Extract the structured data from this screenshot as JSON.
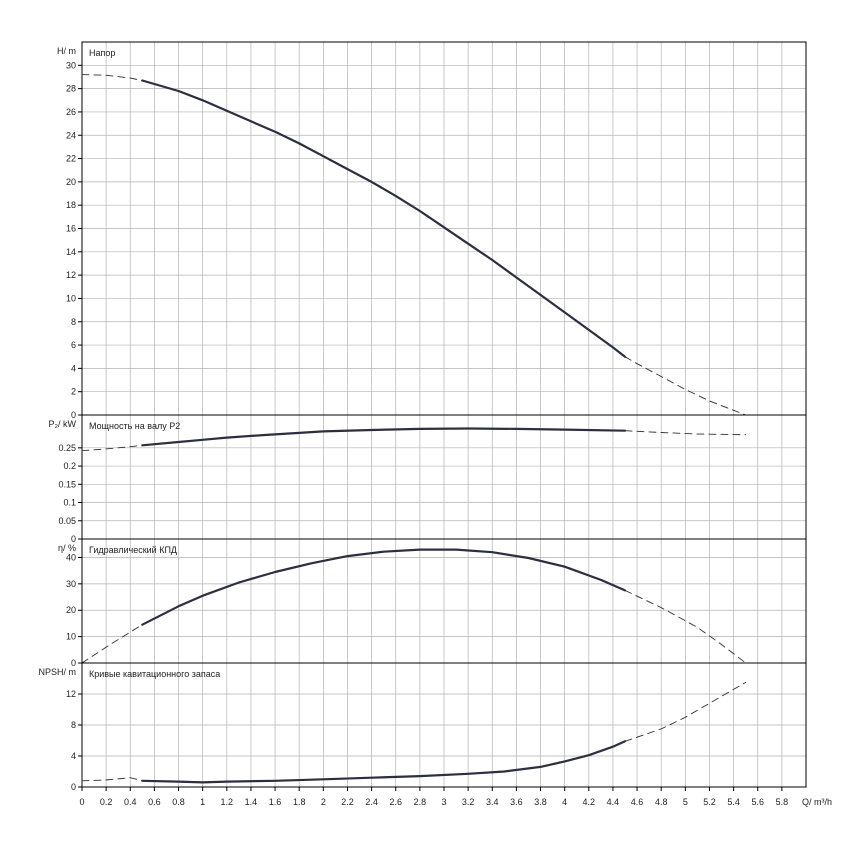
{
  "chart_data": {
    "type": "line",
    "x_axis": {
      "label": "Q/ m³/h",
      "xlim": [
        0,
        6
      ],
      "ticks": [
        "0",
        "0.2",
        "0.4",
        "0.6",
        "0.8",
        "1",
        "1.2",
        "1.4",
        "1.6",
        "1.8",
        "2",
        "2.2",
        "2.4",
        "2.6",
        "2.8",
        "3",
        "3.2",
        "3.4",
        "3.6",
        "3.8",
        "4",
        "4.2",
        "4.4",
        "4.6",
        "4.8",
        "5",
        "5.2",
        "5.4",
        "5.6",
        "5.8"
      ]
    },
    "grid": true,
    "panels": [
      {
        "id": "head",
        "title": "Напор",
        "ylabel": "H/ m",
        "ylim": [
          0,
          32
        ],
        "yticks": [
          "0",
          "2",
          "4",
          "6",
          "8",
          "10",
          "12",
          "14",
          "16",
          "18",
          "20",
          "22",
          "24",
          "26",
          "28",
          "30"
        ],
        "series": [
          {
            "style": "dashed",
            "x": [
              0,
              0.2,
              0.4,
              0.5
            ],
            "y": [
              29.2,
              29.15,
              28.9,
              28.7
            ]
          },
          {
            "style": "solid",
            "x": [
              0.5,
              0.6,
              0.8,
              1.0,
              1.2,
              1.4,
              1.6,
              1.8,
              2.0,
              2.2,
              2.4,
              2.6,
              2.8,
              3.0,
              3.2,
              3.4,
              3.6,
              3.8,
              4.0,
              4.2,
              4.4,
              4.5
            ],
            "y": [
              28.7,
              28.4,
              27.8,
              27.0,
              26.1,
              25.2,
              24.3,
              23.3,
              22.2,
              21.1,
              20.0,
              18.8,
              17.5,
              16.1,
              14.7,
              13.3,
              11.8,
              10.3,
              8.8,
              7.3,
              5.8,
              5.0
            ]
          },
          {
            "style": "dashed",
            "x": [
              4.5,
              4.6,
              4.8,
              5.0,
              5.2,
              5.4,
              5.5
            ],
            "y": [
              5.0,
              4.4,
              3.3,
              2.2,
              1.2,
              0.4,
              0.0
            ]
          }
        ]
      },
      {
        "id": "power",
        "title": "Мощность на валу P2",
        "ylabel": "P₂/ kW",
        "ylim": [
          0,
          0.34
        ],
        "yticks": [
          "0",
          "0.05",
          "0.1",
          "0.15",
          "0.2",
          "0.25"
        ],
        "series": [
          {
            "style": "dashed",
            "x": [
              0,
              0.2,
              0.4,
              0.5
            ],
            "y": [
              0.242,
              0.247,
              0.253,
              0.257
            ]
          },
          {
            "style": "solid",
            "x": [
              0.5,
              0.8,
              1.0,
              1.2,
              1.5,
              1.8,
              2.0,
              2.4,
              2.8,
              3.2,
              3.6,
              4.0,
              4.5
            ],
            "y": [
              0.257,
              0.266,
              0.272,
              0.278,
              0.285,
              0.291,
              0.295,
              0.299,
              0.302,
              0.303,
              0.302,
              0.3,
              0.297
            ]
          },
          {
            "style": "dashed",
            "x": [
              4.5,
              4.8,
              5.1,
              5.5
            ],
            "y": [
              0.297,
              0.292,
              0.288,
              0.286
            ]
          }
        ]
      },
      {
        "id": "efficiency",
        "title": "Гидравлический КПД",
        "ylabel": "η/ %",
        "ylim": [
          0,
          47
        ],
        "yticks": [
          "0",
          "10",
          "20",
          "30",
          "40"
        ],
        "series": [
          {
            "style": "dashed",
            "x": [
              0,
              0.25,
              0.5
            ],
            "y": [
              0,
              7.5,
              14.5
            ]
          },
          {
            "style": "solid",
            "x": [
              0.5,
              0.8,
              1.0,
              1.3,
              1.6,
              1.9,
              2.2,
              2.5,
              2.8,
              3.1,
              3.4,
              3.7,
              4.0,
              4.3,
              4.5
            ],
            "y": [
              14.5,
              21.5,
              25.5,
              30.5,
              34.5,
              37.8,
              40.5,
              42.2,
              43.0,
              43.0,
              42.0,
              39.8,
              36.5,
              31.5,
              27.5
            ]
          },
          {
            "style": "dashed",
            "x": [
              4.5,
              4.8,
              5.1,
              5.3,
              5.5
            ],
            "y": [
              27.5,
              21.0,
              13.5,
              7.0,
              0.0
            ]
          }
        ]
      },
      {
        "id": "npsh",
        "title": "Кривые кавитационного запаса",
        "ylabel": "NPSH/ m",
        "ylim": [
          0,
          16
        ],
        "yticks": [
          "0",
          "4",
          "8",
          "12"
        ],
        "series": [
          {
            "style": "dashed",
            "x": [
              0,
              0.2,
              0.4,
              0.5
            ],
            "y": [
              0.8,
              0.9,
              1.2,
              0.8
            ]
          },
          {
            "style": "solid",
            "x": [
              0.5,
              0.8,
              1.0,
              1.2,
              1.6,
              2.0,
              2.4,
              2.8,
              3.2,
              3.5,
              3.8,
              4.0,
              4.2,
              4.4,
              4.5
            ],
            "y": [
              0.8,
              0.7,
              0.6,
              0.7,
              0.8,
              1.0,
              1.2,
              1.4,
              1.7,
              2.0,
              2.6,
              3.3,
              4.1,
              5.2,
              5.9
            ]
          },
          {
            "style": "dashed",
            "x": [
              4.5,
              4.8,
              5.0,
              5.2,
              5.4,
              5.5
            ],
            "y": [
              5.9,
              7.5,
              9.0,
              10.8,
              12.6,
              13.5
            ]
          }
        ]
      }
    ]
  },
  "colors": {
    "curve": "#2b2f3f",
    "grid": "#b3b3b3",
    "frame": "#000000",
    "text": "#222222"
  }
}
